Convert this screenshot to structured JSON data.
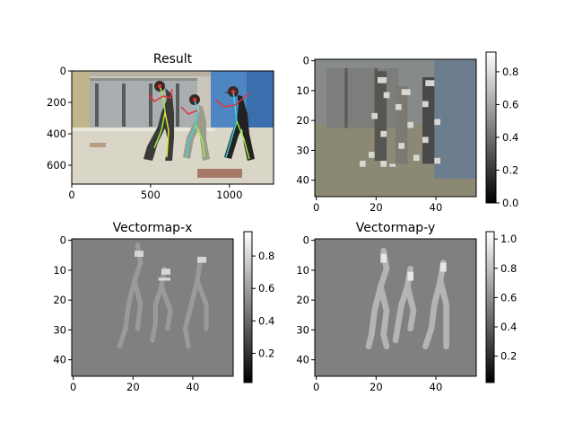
{
  "chart_data": [
    {
      "type": "image",
      "title": "Result",
      "xlim": [
        0,
        1280
      ],
      "ylim": [
        720,
        0
      ],
      "xticks": [
        0,
        500,
        1000
      ],
      "yticks": [
        0,
        200,
        400,
        600
      ],
      "xtick_labels": [
        "0",
        "500",
        "1000"
      ],
      "ytick_labels": [
        "0",
        "200",
        "400",
        "600"
      ],
      "colorbar": null
    },
    {
      "type": "heatmap",
      "title": "",
      "xlim": [
        -0.5,
        53.5
      ],
      "ylim": [
        45.5,
        -0.5
      ],
      "xticks": [
        0,
        20,
        40
      ],
      "yticks": [
        0,
        10,
        20,
        30,
        40
      ],
      "xtick_labels": [
        "0",
        "20",
        "40"
      ],
      "ytick_labels": [
        "0",
        "10",
        "20",
        "30",
        "40"
      ],
      "colorbar": {
        "min": 0.0,
        "max": 0.92,
        "ticks": [
          0.0,
          0.2,
          0.4,
          0.6,
          0.8
        ],
        "tick_labels": [
          "0.0",
          "0.2",
          "0.4",
          "0.6",
          "0.8"
        ],
        "colormap": "gray"
      }
    },
    {
      "type": "heatmap",
      "title": "Vectormap-x",
      "xlim": [
        -0.5,
        53.5
      ],
      "ylim": [
        45.5,
        -0.5
      ],
      "xticks": [
        0,
        20,
        40
      ],
      "yticks": [
        0,
        10,
        20,
        30,
        40
      ],
      "xtick_labels": [
        "0",
        "20",
        "40"
      ],
      "ytick_labels": [
        "0",
        "10",
        "20",
        "30",
        "40"
      ],
      "colorbar": {
        "min": 0.02,
        "max": 0.95,
        "ticks": [
          0.2,
          0.4,
          0.6,
          0.8
        ],
        "tick_labels": [
          "0.2",
          "0.4",
          "0.6",
          "0.8"
        ],
        "colormap": "gray"
      }
    },
    {
      "type": "heatmap",
      "title": "Vectormap-y",
      "xlim": [
        -0.5,
        53.5
      ],
      "ylim": [
        45.5,
        -0.5
      ],
      "xticks": [
        0,
        20,
        40
      ],
      "yticks": [
        0,
        10,
        20,
        30,
        40
      ],
      "xtick_labels": [
        "0",
        "20",
        "40"
      ],
      "ytick_labels": [
        "0",
        "10",
        "20",
        "30",
        "40"
      ],
      "colorbar": {
        "min": 0.02,
        "max": 1.05,
        "ticks": [
          0.2,
          0.4,
          0.6,
          0.8,
          1.0
        ],
        "tick_labels": [
          "0.2",
          "0.4",
          "0.6",
          "0.8",
          "1.0"
        ],
        "colormap": "gray"
      }
    }
  ],
  "scene": {
    "dancers": [
      {
        "head_x": 178,
        "head_y": 17,
        "color": "#e6e6e6"
      },
      {
        "head_x": 216,
        "head_y": 33,
        "color": "#e6e6e6"
      },
      {
        "head_x": 257,
        "head_y": 25,
        "color": "#e6e6e6"
      }
    ],
    "colors": {
      "wall": "#c9c3b8",
      "floor": "#d8d6c8",
      "blue_wall": "#4d86c2",
      "window": "#9aa0a4",
      "skeleton_cyan": "#36d6e0",
      "skeleton_green": "#9cf03a",
      "skeleton_red": "#e8323c",
      "skeleton_yellow": "#e6e62a",
      "heatmap_bg": "#808080"
    }
  }
}
